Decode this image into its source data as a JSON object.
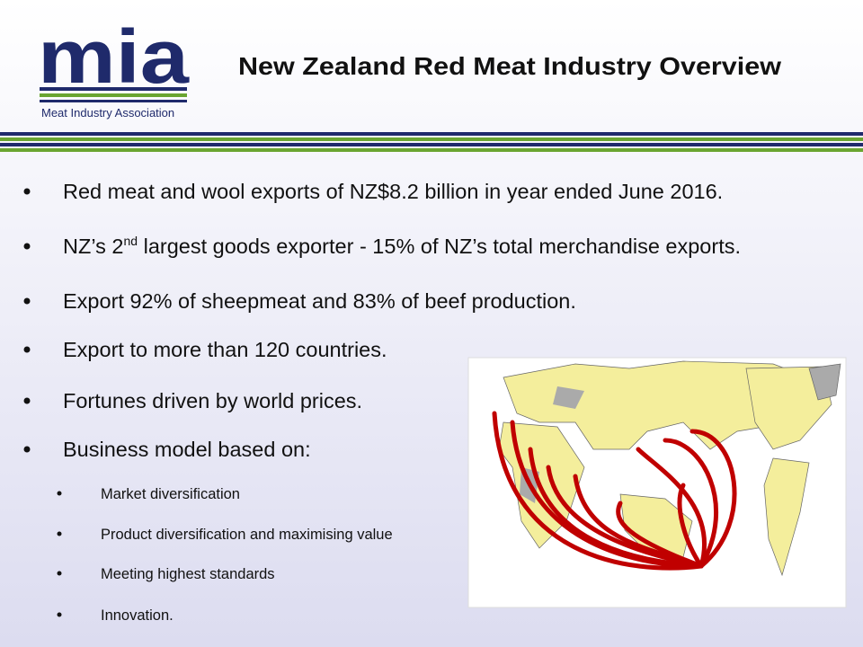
{
  "header": {
    "logo": {
      "mark": "mia",
      "name": "Meat Industry Association"
    },
    "title": "New Zealand Red Meat Industry Overview"
  },
  "bullets": [
    {
      "parts": [
        "Red meat and wool exports of NZ$8.2 billion in year ended June 2016."
      ]
    },
    {
      "parts": [
        "NZ’s 2",
        "nd",
        " largest goods exporter - 15% of NZ’s total merchandise exports."
      ]
    },
    {
      "parts": [
        "Export 92% of sheepmeat and 83% of beef production."
      ]
    },
    {
      "parts": [
        "Export to more than 120 countries."
      ]
    },
    {
      "parts": [
        "Fortunes driven by world prices."
      ]
    },
    {
      "parts": [
        "Business model based on:"
      ]
    }
  ],
  "sub_bullets": [
    "Market diversification",
    "Product diversification and maximising value",
    "Meeting highest standards",
    "Innovation."
  ]
}
